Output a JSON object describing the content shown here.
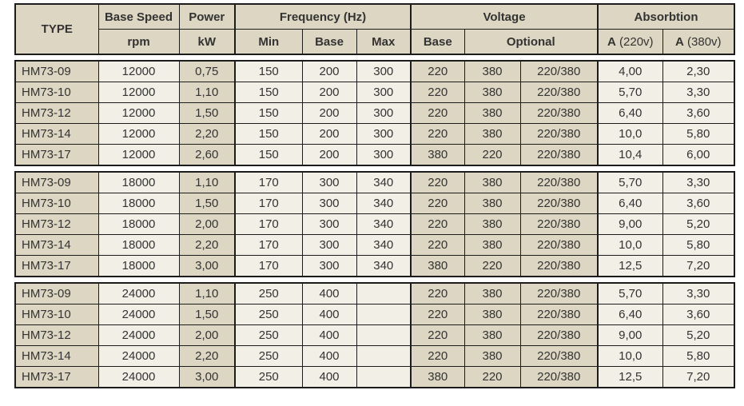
{
  "table": {
    "header": {
      "type": "TYPE",
      "base_speed": "Base Speed",
      "base_speed_unit": "rpm",
      "power": "Power",
      "power_unit": "kW",
      "frequency": "Frequency (Hz)",
      "freq_min": "Min",
      "freq_base": "Base",
      "freq_max": "Max",
      "voltage": "Voltage",
      "voltage_base": "Base",
      "voltage_optional": "Optional",
      "absorbtion": "Absorbtion",
      "a220_prefix": "A",
      "a220_suffix": " (220v)",
      "a380_prefix": "A",
      "a380_suffix": " (380v)"
    },
    "groups": [
      {
        "rows": [
          {
            "type": "HM73-09",
            "rpm": "12000",
            "kw": "0,75",
            "fmin": "150",
            "fbase": "200",
            "fmax": "300",
            "vbase": "220",
            "vopt1": "380",
            "vopt2": "220/380",
            "a220": "4,00",
            "a380": "2,30"
          },
          {
            "type": "HM73-10",
            "rpm": "12000",
            "kw": "1,10",
            "fmin": "150",
            "fbase": "200",
            "fmax": "300",
            "vbase": "220",
            "vopt1": "380",
            "vopt2": "220/380",
            "a220": "5,70",
            "a380": "3,30"
          },
          {
            "type": "HM73-12",
            "rpm": "12000",
            "kw": "1,50",
            "fmin": "150",
            "fbase": "200",
            "fmax": "300",
            "vbase": "220",
            "vopt1": "380",
            "vopt2": "220/380",
            "a220": "6,40",
            "a380": "3,60"
          },
          {
            "type": "HM73-14",
            "rpm": "12000",
            "kw": "2,20",
            "fmin": "150",
            "fbase": "200",
            "fmax": "300",
            "vbase": "220",
            "vopt1": "380",
            "vopt2": "220/380",
            "a220": "10,0",
            "a380": "5,80"
          },
          {
            "type": "HM73-17",
            "rpm": "12000",
            "kw": "2,60",
            "fmin": "150",
            "fbase": "200",
            "fmax": "300",
            "vbase": "380",
            "vopt1": "220",
            "vopt2": "220/380",
            "a220": "10,4",
            "a380": "6,00"
          }
        ]
      },
      {
        "rows": [
          {
            "type": "HM73-09",
            "rpm": "18000",
            "kw": "1,10",
            "fmin": "170",
            "fbase": "300",
            "fmax": "340",
            "vbase": "220",
            "vopt1": "380",
            "vopt2": "220/380",
            "a220": "5,70",
            "a380": "3,30"
          },
          {
            "type": "HM73-10",
            "rpm": "18000",
            "kw": "1,50",
            "fmin": "170",
            "fbase": "300",
            "fmax": "340",
            "vbase": "220",
            "vopt1": "380",
            "vopt2": "220/380",
            "a220": "6,40",
            "a380": "3,60"
          },
          {
            "type": "HM73-12",
            "rpm": "18000",
            "kw": "2,00",
            "fmin": "170",
            "fbase": "300",
            "fmax": "340",
            "vbase": "220",
            "vopt1": "380",
            "vopt2": "220/380",
            "a220": "9,00",
            "a380": "5,20"
          },
          {
            "type": "HM73-14",
            "rpm": "18000",
            "kw": "2,20",
            "fmin": "170",
            "fbase": "300",
            "fmax": "340",
            "vbase": "220",
            "vopt1": "380",
            "vopt2": "220/380",
            "a220": "10,0",
            "a380": "5,80"
          },
          {
            "type": "HM73-17",
            "rpm": "18000",
            "kw": "3,00",
            "fmin": "170",
            "fbase": "300",
            "fmax": "340",
            "vbase": "380",
            "vopt1": "220",
            "vopt2": "220/380",
            "a220": "12,5",
            "a380": "7,20"
          }
        ]
      },
      {
        "rows": [
          {
            "type": "HM73-09",
            "rpm": "24000",
            "kw": "1,10",
            "fmin": "250",
            "fbase": "400",
            "fmax": "",
            "vbase": "220",
            "vopt1": "380",
            "vopt2": "220/380",
            "a220": "5,70",
            "a380": "3,30"
          },
          {
            "type": "HM73-10",
            "rpm": "24000",
            "kw": "1,50",
            "fmin": "250",
            "fbase": "400",
            "fmax": "",
            "vbase": "220",
            "vopt1": "380",
            "vopt2": "220/380",
            "a220": "6,40",
            "a380": "3,60"
          },
          {
            "type": "HM73-12",
            "rpm": "24000",
            "kw": "2,00",
            "fmin": "250",
            "fbase": "400",
            "fmax": "",
            "vbase": "220",
            "vopt1": "380",
            "vopt2": "220/380",
            "a220": "9,00",
            "a380": "5,20"
          },
          {
            "type": "HM73-14",
            "rpm": "24000",
            "kw": "2,20",
            "fmin": "250",
            "fbase": "400",
            "fmax": "",
            "vbase": "220",
            "vopt1": "380",
            "vopt2": "220/380",
            "a220": "10,0",
            "a380": "5,80"
          },
          {
            "type": "HM73-17",
            "rpm": "24000",
            "kw": "3,00",
            "fmin": "250",
            "fbase": "400",
            "fmax": "",
            "vbase": "380",
            "vopt1": "220",
            "vopt2": "220/380",
            "a220": "12,5",
            "a380": "7,20"
          }
        ]
      }
    ]
  },
  "colors": {
    "header_beige": "#dcd6c2",
    "cell_light": "#f2efe6",
    "border": "#1c1c1c",
    "text": "#333333"
  }
}
